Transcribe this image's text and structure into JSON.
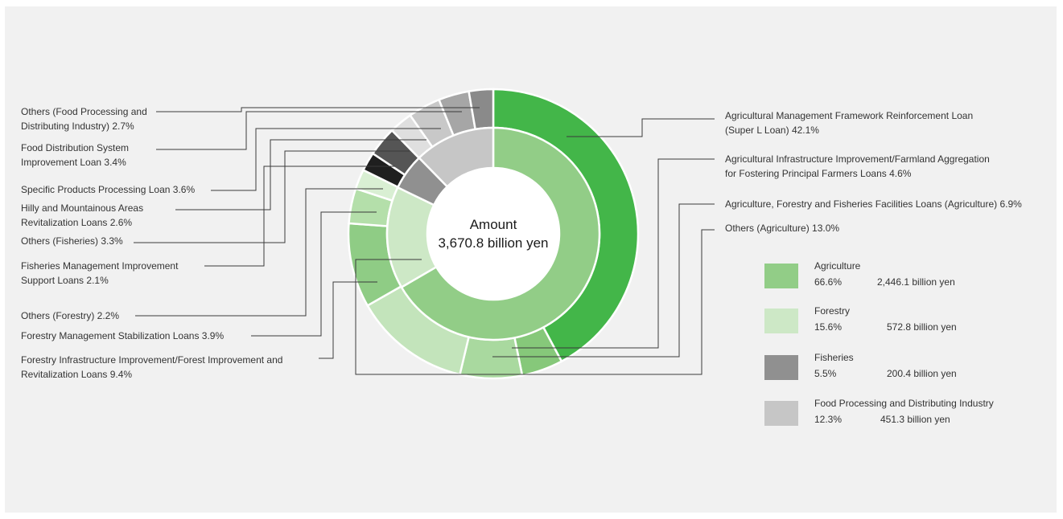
{
  "chart_data": {
    "type": "pie",
    "center": {
      "label": "Amount",
      "value": "3,670.8 billion yen"
    },
    "inner_ring": [
      {
        "name": "Agriculture",
        "percent": 66.6,
        "amount": "2,446.1 billion yen",
        "color": "#92cd87"
      },
      {
        "name": "Forestry",
        "percent": 15.6,
        "amount": "572.8 billion yen",
        "color": "#cde8c6"
      },
      {
        "name": "Fisheries",
        "percent": 5.5,
        "amount": "200.4 billion yen",
        "color": "#909090"
      },
      {
        "name": "Food Processing and Distributing Industry",
        "percent": 12.3,
        "amount": "451.3 billion yen",
        "color": "#c6c6c6"
      }
    ],
    "outer_ring": [
      {
        "label": "Agricultural Management Framework Reinforcement Loan (Super L Loan) 42.1%",
        "value": 42.1,
        "color": "#43b649"
      },
      {
        "label": "Agricultural Infrastructure Improvement/Farmland Aggregation for Fostering Principal Farmers Loans 4.6%",
        "value": 4.6,
        "color": "#86c87a"
      },
      {
        "label": "Agriculture, Forestry and Fisheries Facilities Loans (Agriculture) 6.9%",
        "value": 6.9,
        "color": "#a9d99f"
      },
      {
        "label": "Others (Agriculture) 13.0%",
        "value": 13.0,
        "color": "#c3e4bb"
      },
      {
        "label": "Forestry Infrastructure Improvement/Forest Improvement and Revitalization Loans 9.4%",
        "value": 9.4,
        "color": "#8fcc85"
      },
      {
        "label": "Forestry Management Stabilization Loans 3.9%",
        "value": 3.9,
        "color": "#b4dfaa"
      },
      {
        "label": "Others (Forestry) 2.2%",
        "value": 2.2,
        "color": "#d9efd3"
      },
      {
        "label": "Fisheries Management Improvement Support Loans 2.1%",
        "value": 2.1,
        "color": "#1f1f1f"
      },
      {
        "label": "Others (Fisheries) 3.3%",
        "value": 3.3,
        "color": "#555555"
      },
      {
        "label": "Hilly and Mountainous Areas Revitalization Loans 2.6%",
        "value": 2.6,
        "color": "#dfdfdf"
      },
      {
        "label": "Specific Products Processing Loan 3.6%",
        "value": 3.6,
        "color": "#c8c8c8"
      },
      {
        "label": "Food Distribution System Improvement Loan 3.4%",
        "value": 3.4,
        "color": "#a6a6a6"
      },
      {
        "label": "Others (Food Processing and Distributing Industry) 2.7%",
        "value": 2.7,
        "color": "#8a8a8a"
      }
    ],
    "legend": [
      {
        "name": "Agriculture",
        "pct": "66.6%",
        "amount": "2,446.1 billion yen",
        "color": "#92cd87"
      },
      {
        "name": "Forestry",
        "pct": "15.6%",
        "amount": "572.8 billion yen",
        "color": "#cde8c6"
      },
      {
        "name": "Fisheries",
        "pct": "5.5%",
        "amount": "200.4 billion yen",
        "color": "#909090"
      },
      {
        "name": "Food Processing and Distributing Industry",
        "pct": "12.3%",
        "amount": "451.3 billion yen",
        "color": "#c6c6c6"
      }
    ],
    "legend_placement": "bottom-right"
  },
  "callouts": {
    "right": [
      [
        "Agricultural Management Framework Reinforcement Loan",
        "(Super L Loan) 42.1%"
      ],
      [
        "Agricultural Infrastructure Improvement/Farmland Aggregation",
        "for Fostering Principal Farmers Loans 4.6%"
      ],
      [
        "Agriculture, Forestry and Fisheries Facilities Loans (Agriculture) 6.9%"
      ],
      [
        "Others (Agriculture) 13.0%"
      ]
    ],
    "left": [
      [
        "Others (Food Processing and",
        "Distributing Industry) 2.7%"
      ],
      [
        "Food Distribution System",
        "Improvement Loan 3.4%"
      ],
      [
        "Specific Products Processing Loan 3.6%"
      ],
      [
        "Hilly and Mountainous Areas",
        "Revitalization Loans 2.6%"
      ],
      [
        "Others (Fisheries) 3.3%"
      ],
      [
        "Fisheries Management Improvement",
        "Support Loans 2.1%"
      ],
      [
        "Others (Forestry) 2.2%"
      ],
      [
        "Forestry Management Stabilization Loans 3.9%"
      ],
      [
        "Forestry Infrastructure Improvement/Forest Improvement and",
        "Revitalization Loans 9.4%"
      ]
    ]
  }
}
